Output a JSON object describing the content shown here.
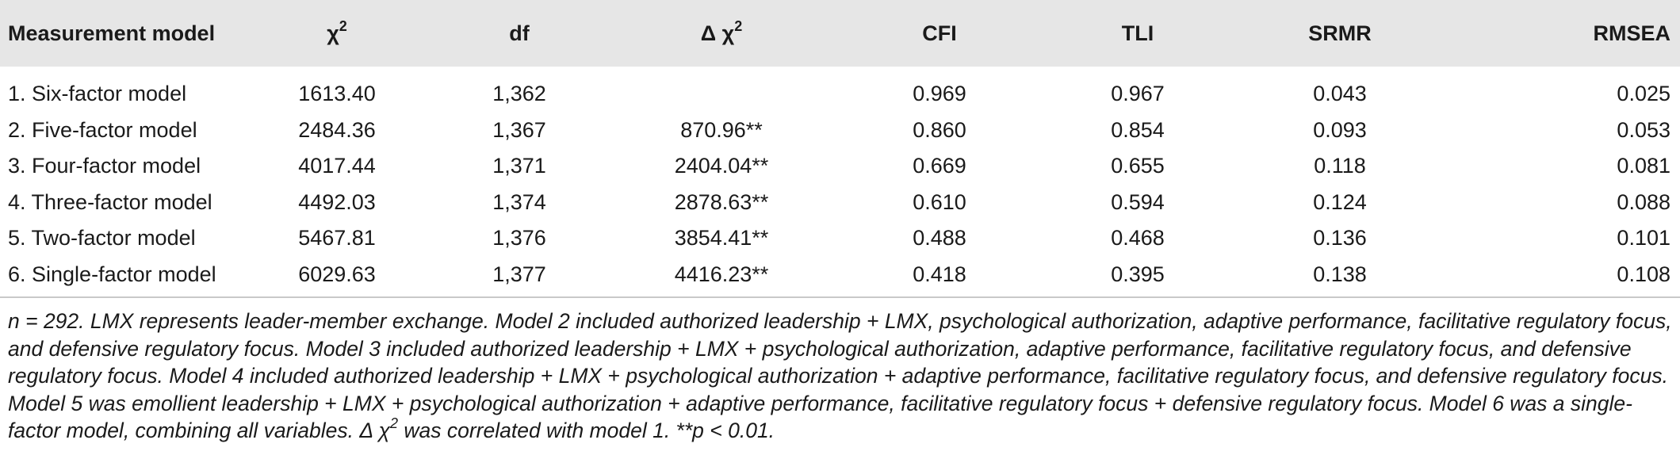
{
  "table": {
    "headers": {
      "model": "Measurement model",
      "chi": "χ",
      "chi_sup": "2",
      "df": "df",
      "delta": "Δ χ",
      "delta_sup": "2",
      "cfi": "CFI",
      "tli": "TLI",
      "srmr": "SRMR",
      "rmsea": "RMSEA"
    },
    "rows": [
      {
        "model": "1. Six-factor model",
        "chi2": "1613.40",
        "df": "1,362",
        "delta": "",
        "cfi": "0.969",
        "tli": "0.967",
        "srmr": "0.043",
        "rmsea": "0.025"
      },
      {
        "model": "2. Five-factor model",
        "chi2": "2484.36",
        "df": "1,367",
        "delta": "870.96**",
        "cfi": "0.860",
        "tli": "0.854",
        "srmr": "0.093",
        "rmsea": "0.053"
      },
      {
        "model": "3. Four-factor model",
        "chi2": "4017.44",
        "df": "1,371",
        "delta": "2404.04**",
        "cfi": "0.669",
        "tli": "0.655",
        "srmr": "0.118",
        "rmsea": "0.081"
      },
      {
        "model": "4. Three-factor model",
        "chi2": "4492.03",
        "df": "1,374",
        "delta": "2878.63**",
        "cfi": "0.610",
        "tli": "0.594",
        "srmr": "0.124",
        "rmsea": "0.088"
      },
      {
        "model": "5. Two-factor model",
        "chi2": "5467.81",
        "df": "1,376",
        "delta": "3854.41**",
        "cfi": "0.488",
        "tli": "0.468",
        "srmr": "0.136",
        "rmsea": "0.101"
      },
      {
        "model": "6. Single-factor model",
        "chi2": "6029.63",
        "df": "1,377",
        "delta": "4416.23**",
        "cfi": "0.418",
        "tli": "0.395",
        "srmr": "0.138",
        "rmsea": "0.108"
      }
    ]
  },
  "note": {
    "part1": "n = 292. LMX represents leader-member exchange. Model 2 included authorized leadership + LMX, psychological authorization, adaptive performance, facilitative regulatory focus, and defensive regulatory focus. Model 3 included authorized leadership + LMX + psychological authorization, adaptive performance, facilitative regulatory focus, and defensive regulatory focus. Model 4 included authorized leadership + LMX + psychological authorization + adaptive performance, facilitative regulatory focus, and defensive regulatory focus. Model 5 was emollient leadership + LMX + psychological authorization + adaptive performance, facilitative regulatory focus + defensive regulatory focus. Model 6 was a single-factor model, combining all variables. ",
    "delta_symbol": "Δ χ",
    "delta_sup": "2",
    "part2": " was correlated with model 1. **p < 0.01."
  }
}
